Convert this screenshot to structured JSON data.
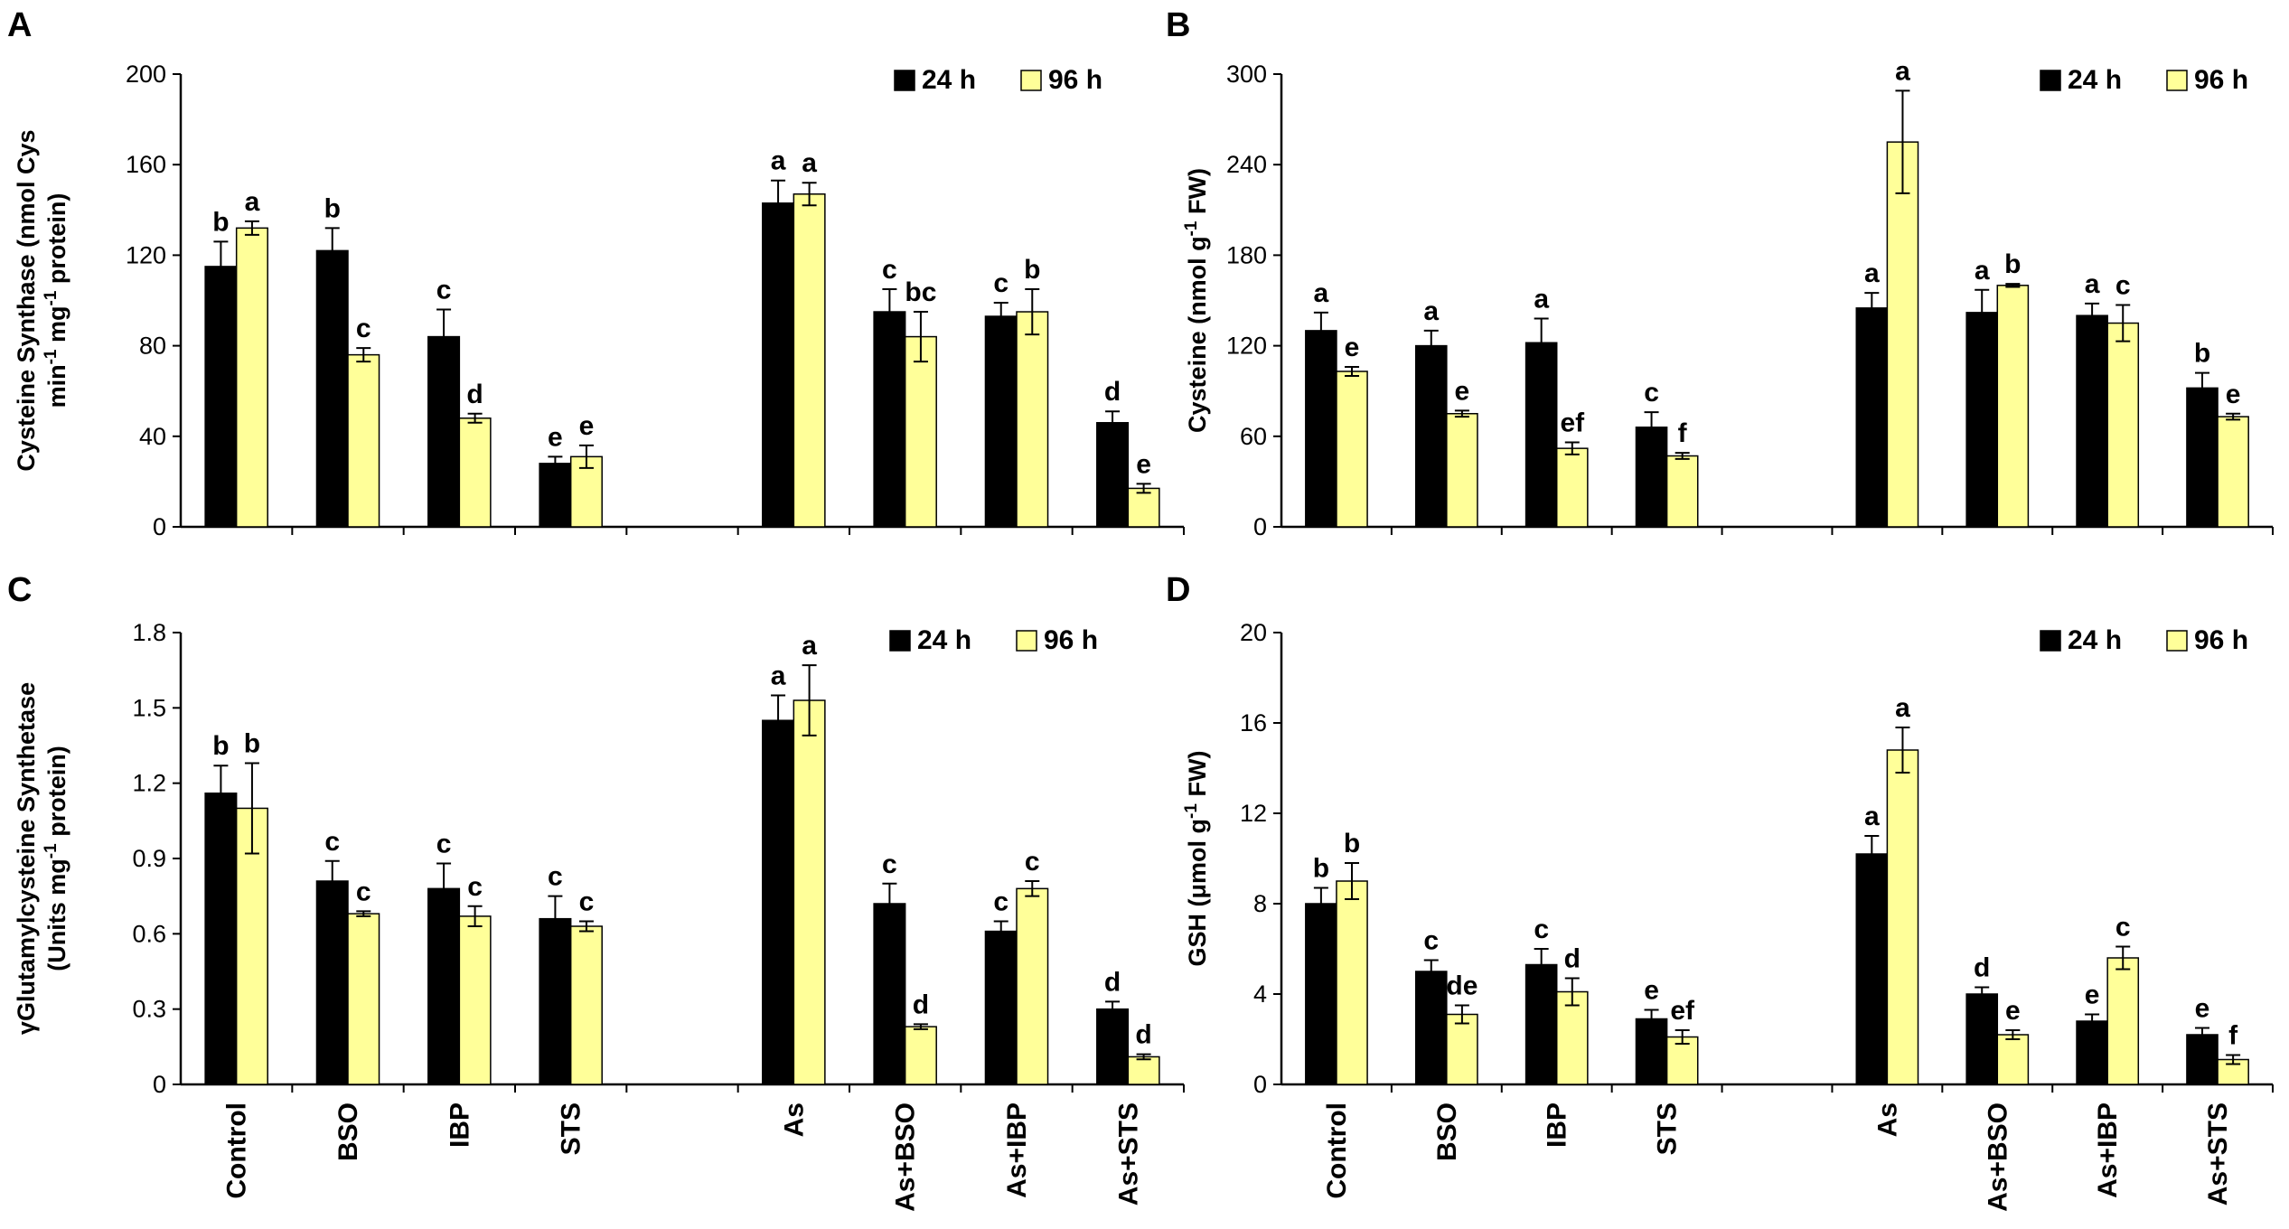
{
  "chart_data": [
    {
      "type": "bar",
      "panel": "A",
      "ylabel_lines": [
        "Cysteine Synthase (nmol Cys",
        "min-1 mg-1 protein)"
      ],
      "ylim": [
        0,
        200
      ],
      "yticks": [
        "0",
        "40",
        "80",
        "120",
        "160",
        "200"
      ],
      "categories": [
        "Control",
        "BSO",
        "IBP",
        "STS",
        "As",
        "As+BSO",
        "As+IBP",
        "As+STS"
      ],
      "series": [
        {
          "name": "24 h",
          "color": "#000000",
          "values": [
            115,
            122,
            84,
            28,
            143,
            95,
            93,
            46
          ],
          "errors": [
            11,
            10,
            12,
            3,
            10,
            10,
            6,
            5
          ],
          "labels": [
            "b",
            "b",
            "c",
            "e",
            "a",
            "c",
            "c",
            "d"
          ]
        },
        {
          "name": "96 h",
          "color": "#ffff99",
          "values": [
            132,
            76,
            48,
            31,
            147,
            84,
            95,
            17
          ],
          "errors": [
            3,
            3,
            2,
            5,
            5,
            11,
            10,
            2
          ],
          "labels": [
            "a",
            "c",
            "d",
            "e",
            "a",
            "bc",
            "b",
            "e"
          ]
        }
      ]
    },
    {
      "type": "bar",
      "panel": "B",
      "ylabel_lines": [
        "Cysteine (nmol g-1 FW)"
      ],
      "ylim": [
        0,
        300
      ],
      "yticks": [
        "0",
        "60",
        "120",
        "180",
        "240",
        "300"
      ],
      "categories": [
        "Control",
        "BSO",
        "IBP",
        "STS",
        "As",
        "As+BSO",
        "As+IBP",
        "As+STS"
      ],
      "series": [
        {
          "name": "24 h",
          "color": "#000000",
          "values": [
            130,
            120,
            122,
            66,
            145,
            142,
            140,
            92
          ],
          "errors": [
            12,
            10,
            16,
            10,
            10,
            15,
            8,
            10
          ],
          "labels": [
            "a",
            "a",
            "a",
            "c",
            "a",
            "a",
            "a",
            "b"
          ]
        },
        {
          "name": "96 h",
          "color": "#ffff99",
          "values": [
            103,
            75,
            52,
            47,
            255,
            160,
            135,
            73
          ],
          "errors": [
            3,
            2,
            4,
            2,
            34,
            1,
            12,
            2
          ],
          "labels": [
            "e",
            "e",
            "ef",
            "f",
            "a",
            "b",
            "c",
            "e"
          ]
        }
      ]
    },
    {
      "type": "bar",
      "panel": "C",
      "ylabel_lines": [
        "γGlutamylcysteine Synthetase",
        "(Units mg-1 protein)"
      ],
      "ylim": [
        0,
        1.8
      ],
      "yticks": [
        "0",
        "0.3",
        "0.6",
        "0.9",
        "1.2",
        "1.5",
        "1.8"
      ],
      "categories": [
        "Control",
        "BSO",
        "IBP",
        "STS",
        "As",
        "As+BSO",
        "As+IBP",
        "As+STS"
      ],
      "series": [
        {
          "name": "24 h",
          "color": "#000000",
          "values": [
            1.16,
            0.81,
            0.78,
            0.66,
            1.45,
            0.72,
            0.61,
            0.3
          ],
          "errors": [
            0.11,
            0.08,
            0.1,
            0.09,
            0.1,
            0.08,
            0.04,
            0.03
          ],
          "labels": [
            "b",
            "c",
            "c",
            "c",
            "a",
            "c",
            "c",
            "d"
          ]
        },
        {
          "name": "96 h",
          "color": "#ffff99",
          "values": [
            1.1,
            0.68,
            0.67,
            0.63,
            1.53,
            0.23,
            0.78,
            0.11
          ],
          "errors": [
            0.18,
            0.01,
            0.04,
            0.02,
            0.14,
            0.01,
            0.03,
            0.01
          ],
          "labels": [
            "b",
            "c",
            "c",
            "c",
            "a",
            "d",
            "c",
            "d"
          ]
        }
      ]
    },
    {
      "type": "bar",
      "panel": "D",
      "ylabel_lines": [
        "GSH (μmol g-1 FW)"
      ],
      "ylim": [
        0,
        20
      ],
      "yticks": [
        "0",
        "4",
        "8",
        "12",
        "16",
        "20"
      ],
      "categories": [
        "Control",
        "BSO",
        "IBP",
        "STS",
        "As",
        "As+BSO",
        "As+IBP",
        "As+STS"
      ],
      "series": [
        {
          "name": "24 h",
          "color": "#000000",
          "values": [
            8.0,
            5.0,
            5.3,
            2.9,
            10.2,
            4.0,
            2.8,
            2.2
          ],
          "errors": [
            0.7,
            0.5,
            0.7,
            0.4,
            0.8,
            0.3,
            0.3,
            0.3
          ],
          "labels": [
            "b",
            "c",
            "c",
            "e",
            "a",
            "d",
            "e",
            "e"
          ]
        },
        {
          "name": "96 h",
          "color": "#ffff99",
          "values": [
            9.0,
            3.1,
            4.1,
            2.1,
            14.8,
            2.2,
            5.6,
            1.1
          ],
          "errors": [
            0.8,
            0.4,
            0.6,
            0.3,
            1.0,
            0.2,
            0.5,
            0.2
          ],
          "labels": [
            "b",
            "de",
            "d",
            "ef",
            "a",
            "e",
            "c",
            "f"
          ]
        }
      ]
    }
  ]
}
